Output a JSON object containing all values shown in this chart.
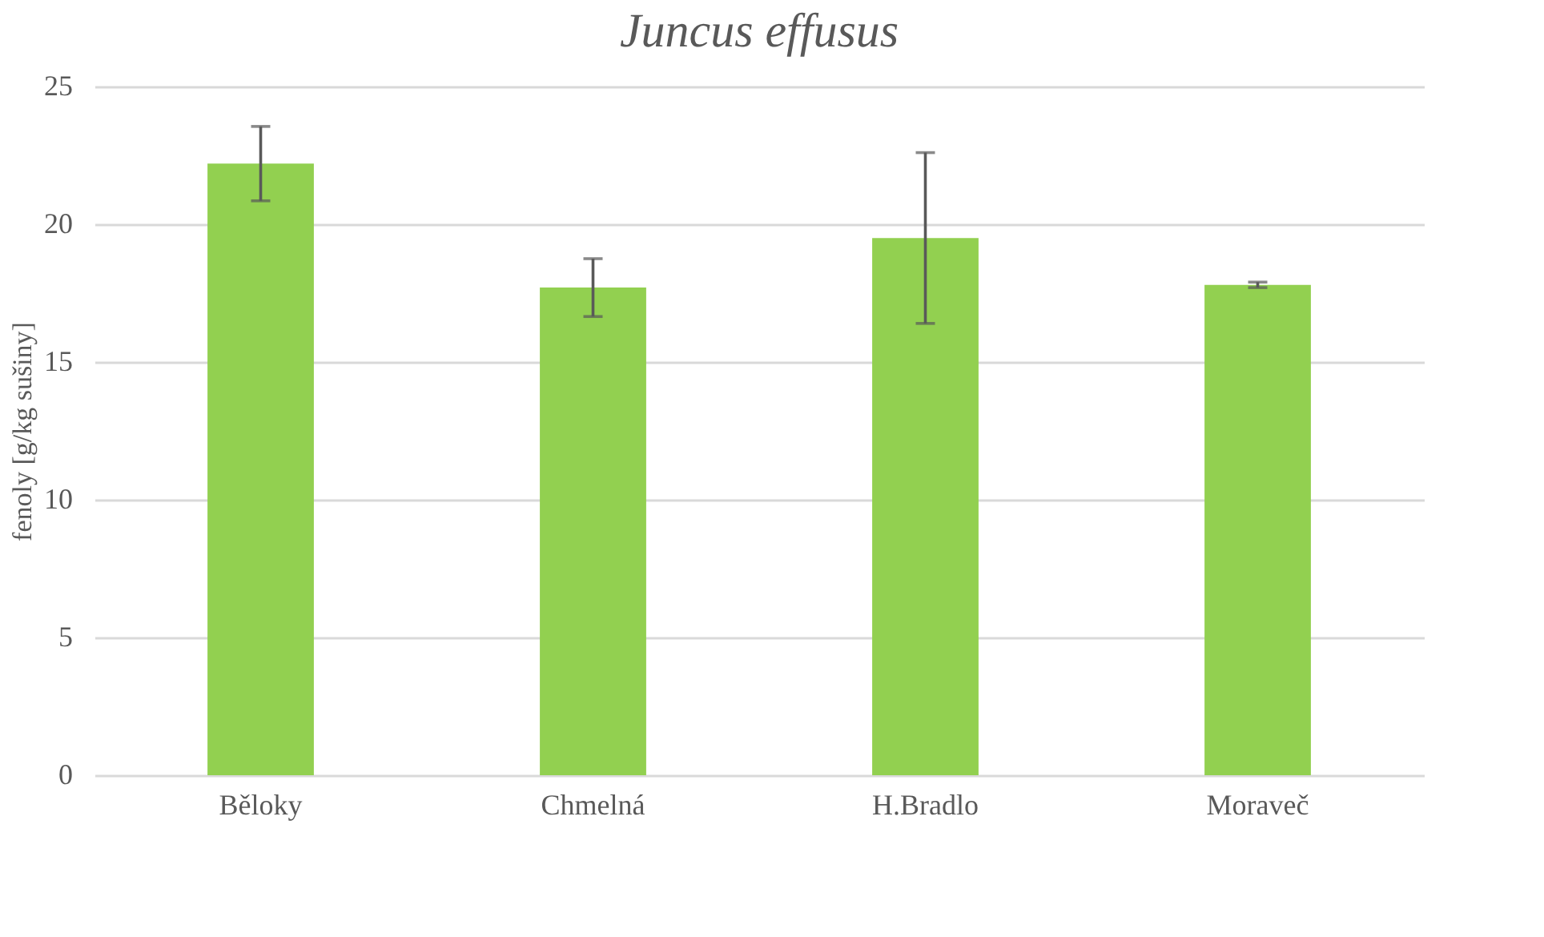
{
  "chart_data": {
    "type": "bar",
    "title": "Juncus effusus",
    "ylabel": "fenoly [g/kg sušiny]",
    "categories": [
      "Běloky",
      "Chmelná",
      "H.Bradlo",
      "Moraveč"
    ],
    "values": [
      22.2,
      17.7,
      19.5,
      17.8
    ],
    "errors": [
      1.35,
      1.05,
      3.1,
      0.1
    ],
    "color": "#92d050",
    "ylim": [
      0,
      25
    ],
    "yticks": [
      0,
      5,
      10,
      15,
      20,
      25
    ],
    "grid": "y"
  }
}
